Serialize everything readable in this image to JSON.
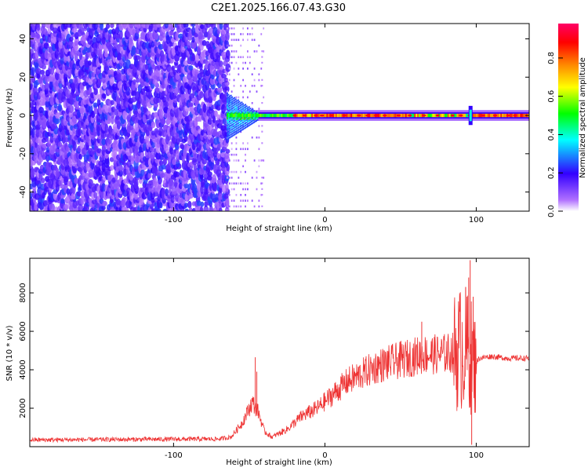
{
  "title": "C2E1.2025.166.07.43.G30",
  "chart_data": [
    {
      "type": "heatmap",
      "title": "C2E1.2025.166.07.43.G30",
      "xlabel": "Height of straight line (km)",
      "ylabel": "Frequency (Hz)",
      "xlim": [
        -195,
        135
      ],
      "ylim": [
        -50,
        48
      ],
      "xticks": [
        -100,
        0,
        100
      ],
      "yticks": [
        -40,
        -20,
        0,
        20,
        40
      ],
      "grid": false,
      "colorbar": {
        "label": "Normalized spectral amplitude",
        "range": [
          0,
          0.98
        ],
        "ticks": [
          0,
          0.2,
          0.4,
          0.6,
          0.8
        ],
        "colors": [
          "#ffffff",
          "#b070ff",
          "#3300ff",
          "#00ffff",
          "#00ff00",
          "#ffff00",
          "#ff8800",
          "#ff0000",
          "#ff0066"
        ]
      },
      "features": {
        "noise_region_x": [
          -195,
          -65
        ],
        "noise_level": 0.15,
        "sparse_region_x": [
          -65,
          -40
        ],
        "carrier_start_x": -65,
        "carrier_frequency": 0,
        "carrier_peak_amplitude": 0.9,
        "wideband_burst_x": [
          -65,
          -45
        ],
        "spike_x": 96
      }
    },
    {
      "type": "line",
      "xlabel": "Height of straight line (km)",
      "ylabel": "SNR (10 * v/v)",
      "xlim": [
        -195,
        135
      ],
      "ylim": [
        0,
        9800
      ],
      "xticks": [
        -100,
        0,
        100
      ],
      "yticks": [
        2000,
        4000,
        6000,
        8000
      ],
      "color": "#ee3333",
      "grid": false,
      "trend_x": [
        -195,
        -70,
        -62,
        -55,
        -48,
        -44,
        -40,
        -35,
        -25,
        -15,
        -5,
        5,
        15,
        25,
        35,
        45,
        55,
        65,
        75,
        85,
        92,
        96,
        99,
        102,
        110,
        120,
        135
      ],
      "trend_y": [
        350,
        400,
        500,
        1200,
        2300,
        1800,
        800,
        500,
        900,
        1600,
        2000,
        2700,
        3400,
        3800,
        4200,
        4400,
        4600,
        4800,
        4800,
        4900,
        5200,
        4800,
        4300,
        4600,
        4700,
        4600,
        4600
      ],
      "spikes": [
        {
          "x": -46,
          "y": 4650
        },
        {
          "x": -45,
          "y": 3900
        },
        {
          "x": 64,
          "y": 6500
        },
        {
          "x": 93,
          "y": 8300
        },
        {
          "x": 95,
          "y": 8800
        },
        {
          "x": 96,
          "y": 9700
        },
        {
          "x": 98,
          "y": 7800
        },
        {
          "x": 97,
          "y": 100
        }
      ]
    }
  ]
}
